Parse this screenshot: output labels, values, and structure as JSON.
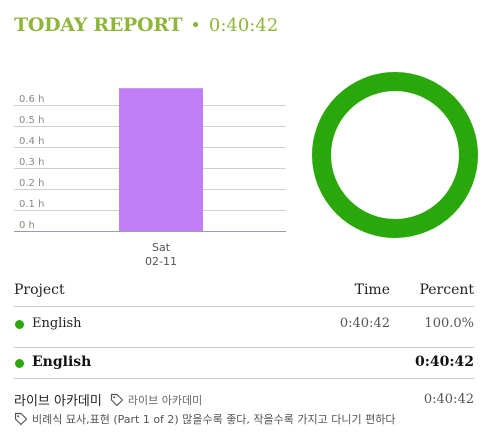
{
  "header": {
    "title": "TODAY REPORT",
    "separator": "•",
    "total_time": "0:40:42"
  },
  "colors": {
    "accent": "#8fb53a",
    "bar": "#bf7ef5",
    "donut": "#2aa70a",
    "grid": "#cfcfd6"
  },
  "chart_data": {
    "type": "bar",
    "categories": [
      "Sat\n02-11"
    ],
    "category_lines": [
      [
        "Sat",
        "02-11"
      ]
    ],
    "values": [
      0.68
    ],
    "unit": "h",
    "yticks": [
      "0.6 h",
      "0.5 h",
      "0.4 h",
      "0.3 h",
      "0.2 h",
      "0.1 h",
      "0 h"
    ],
    "ylim": [
      0,
      0.7
    ],
    "grid": true,
    "donut": {
      "type": "pie",
      "labels": [
        "English"
      ],
      "values": [
        100
      ]
    }
  },
  "table": {
    "headers": {
      "project": "Project",
      "time": "Time",
      "percent": "Percent"
    },
    "rows": [
      {
        "project": "English",
        "time": "0:40:42",
        "percent": "100.0%"
      }
    ]
  },
  "summary": {
    "project": "English",
    "time": "0:40:42"
  },
  "entry": {
    "title": "라이브 아카데미",
    "tag": "라이브 아카데미",
    "note": "비례식 묘사,표현 (Part 1 of 2) 많을수록 좋다, 작을수록 가지고 다니기 편하다",
    "time": "0:40:42",
    "icon": "tag-icon"
  }
}
